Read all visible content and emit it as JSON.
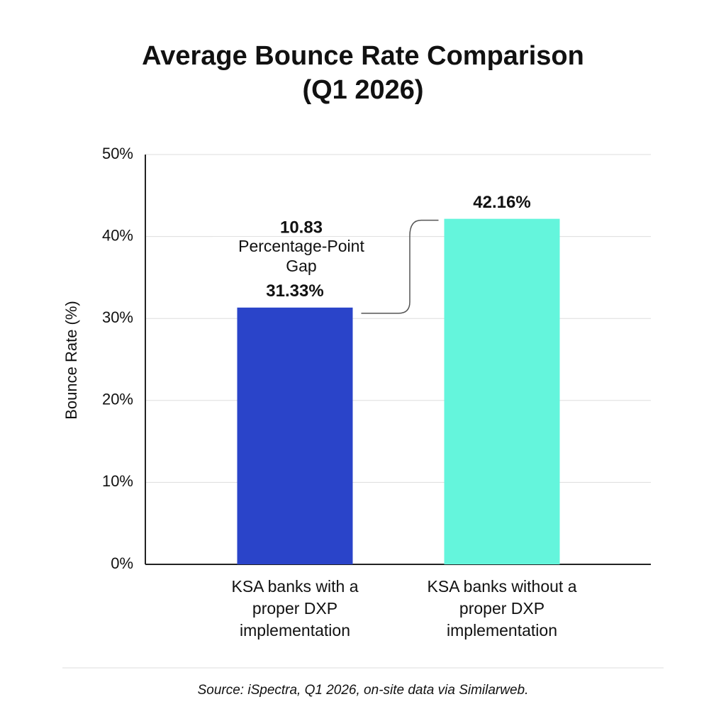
{
  "chart_data": {
    "type": "bar",
    "title": "Average Bounce Rate Comparison (Q1 2026)",
    "y_label": "Bounce Rate (%)",
    "categories": [
      "KSA banks with a proper DXP implementation",
      "KSA banks without a proper DXP implementation"
    ],
    "values": [
      31.33,
      42.16
    ],
    "value_labels": [
      "31.33%",
      "42.16%"
    ],
    "colors": [
      "#2a44c9",
      "#64f5dc"
    ],
    "ylim": [
      0,
      50
    ],
    "yticks": [
      {
        "value": 0,
        "label": "0%"
      },
      {
        "value": 10,
        "label": "10%"
      },
      {
        "value": 20,
        "label": "20%"
      },
      {
        "value": 30,
        "label": "30%"
      },
      {
        "value": 40,
        "label": "40%"
      },
      {
        "value": 50,
        "label": "50%"
      }
    ],
    "grid": true,
    "annotation": {
      "gap": 10.83,
      "text": "Percentage-Point Gap"
    },
    "source": "Source: iSpectra, Q1 2026, on-site data via Similarweb."
  }
}
